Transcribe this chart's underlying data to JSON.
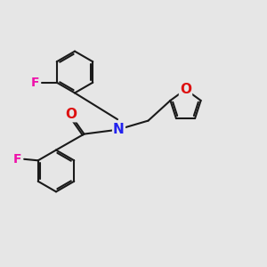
{
  "background_color": "#e6e6e6",
  "line_color": "#1a1a1a",
  "bond_width": 1.5,
  "font_size_atoms": 9,
  "N_color": "#2222ee",
  "O_color": "#dd1111",
  "F_color": "#ee11aa",
  "xlim": [
    0,
    10
  ],
  "ylim": [
    0,
    10
  ]
}
